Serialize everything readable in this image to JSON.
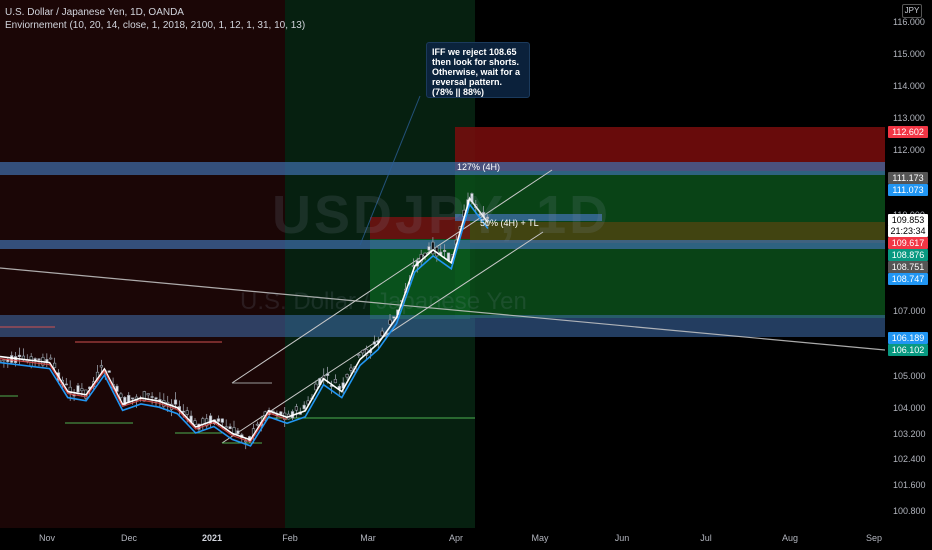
{
  "chart": {
    "title": "U.S. Dollar / Japanese Yen, 1D, OANDA",
    "indicator": "Enviornement (10, 20, 14, close, 1, 2018, 2100, 1, 12, 1, 31, 10, 13)",
    "watermark_symbol": "USDJPY, 1D",
    "watermark_name": "U.S. Dollar / Japanese Yen",
    "currency": "JPY",
    "note": "IFF we reject 108.65 then look for shorts. Otherwise, wait for a reversal pattern. (78% || 88%)",
    "fib_127_label": "127% (4H)",
    "fib_50_label": "50% (4H) + TL",
    "countdown": "21:23:34"
  },
  "colors": {
    "background": "#000000",
    "bull_zone": "#0a5c1e",
    "bear_zone": "#7a0d0d",
    "sr_zone": "#3f6fae",
    "ema_fast": "#ffffff",
    "ema_slow": "#2196f3",
    "channel": "#c8c8c8",
    "trendline": "#c8c8c8",
    "tag_red": "#f23645",
    "tag_green": "#089981",
    "tag_blue": "#2196f3",
    "tag_gray": "#555555"
  },
  "chart_data": {
    "type": "line",
    "ylim": [
      100.3,
      116.7
    ],
    "y_ticks": [
      "116.000",
      "115.000",
      "114.000",
      "113.000",
      "112.000",
      "111.000",
      "110.000",
      "109.000",
      "108.000",
      "107.000",
      "106.000",
      "105.000",
      "104.000",
      "103.200",
      "102.400",
      "101.600",
      "100.800"
    ],
    "y_tick_values": [
      116,
      115,
      114,
      113,
      112,
      111,
      110,
      109,
      108,
      107,
      106,
      105,
      104,
      103.2,
      102.4,
      101.6,
      100.8
    ],
    "x_labels": [
      "Nov",
      "Dec",
      "2021",
      "Feb",
      "Mar",
      "Apr",
      "May",
      "Jun",
      "Jul",
      "Aug",
      "Sep"
    ],
    "price_tags": [
      {
        "value": "112.602",
        "color": "red"
      },
      {
        "value": "111.173",
        "color": "gray"
      },
      {
        "value": "111.073",
        "color": "blue"
      },
      {
        "value": "109.853",
        "color": "white"
      },
      {
        "value": "109.617",
        "color": "red"
      },
      {
        "value": "108.876",
        "color": "green"
      },
      {
        "value": "108.751",
        "color": "gray"
      },
      {
        "value": "108.747",
        "color": "blue"
      },
      {
        "value": "106.189",
        "color": "blue"
      },
      {
        "value": "106.102",
        "color": "green"
      }
    ],
    "close_series": [
      {
        "date": "2020-10-20",
        "close": 105.5
      },
      {
        "date": "2020-10-27",
        "close": 104.6
      },
      {
        "date": "2020-11-03",
        "close": 104.5
      },
      {
        "date": "2020-11-10",
        "close": 105.3
      },
      {
        "date": "2020-11-17",
        "close": 104.2
      },
      {
        "date": "2020-11-24",
        "close": 104.4
      },
      {
        "date": "2020-12-01",
        "close": 104.3
      },
      {
        "date": "2020-12-08",
        "close": 104.1
      },
      {
        "date": "2020-12-15",
        "close": 103.5
      },
      {
        "date": "2020-12-22",
        "close": 103.7
      },
      {
        "date": "2020-12-29",
        "close": 103.3
      },
      {
        "date": "2021-01-05",
        "close": 103.1
      },
      {
        "date": "2021-01-12",
        "close": 104.0
      },
      {
        "date": "2021-01-19",
        "close": 103.8
      },
      {
        "date": "2021-01-26",
        "close": 104.0
      },
      {
        "date": "2021-02-02",
        "close": 105.0
      },
      {
        "date": "2021-02-09",
        "close": 104.6
      },
      {
        "date": "2021-02-16",
        "close": 105.6
      },
      {
        "date": "2021-02-23",
        "close": 106.1
      },
      {
        "date": "2021-03-02",
        "close": 106.9
      },
      {
        "date": "2021-03-09",
        "close": 108.5
      },
      {
        "date": "2021-03-16",
        "close": 109.0
      },
      {
        "date": "2021-03-23",
        "close": 108.6
      },
      {
        "date": "2021-03-30",
        "close": 110.6
      },
      {
        "date": "2021-04-06",
        "close": 109.85
      }
    ]
  }
}
